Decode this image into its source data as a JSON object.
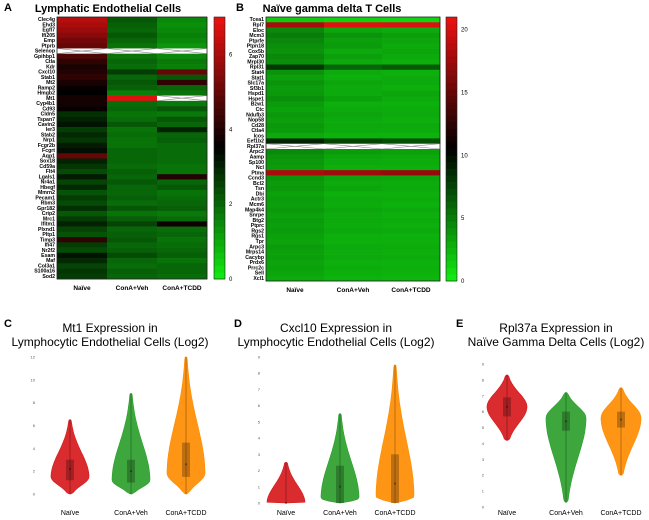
{
  "panels": {
    "A": {
      "letter": "A",
      "title": "Lymphatic Endothelial Cells"
    },
    "B": {
      "letter": "B",
      "title": "Naïve gamma delta T Cells"
    },
    "C": {
      "letter": "C",
      "title_line1": "Mt1 Expression in",
      "title_line2": "Lymphocytic Endothelial Cells (Log2)"
    },
    "D": {
      "letter": "D",
      "title_line1": "Cxcl10 Expression in",
      "title_line2": "Lymphocytic Endothelial Cells (Log2)"
    },
    "E": {
      "letter": "E",
      "title_line1": "Rpl37a Expression in",
      "title_line2": "Naïve Gamma Delta Cells (Log2)"
    }
  },
  "colors": {
    "low": "#11ee11",
    "mid": "#000000",
    "high": "#ee1111",
    "naive": "#d7191c",
    "veh": "#2ca02c",
    "tcdd": "#ff8c00"
  },
  "chart_data": [
    {
      "type": "heatmap",
      "title": "Lymphatic Endothelial Cells",
      "columns": [
        "Naïve",
        "ConA+Veh",
        "ConA+TCDD"
      ],
      "rows": [
        "Clec4g",
        "Ehd3",
        "Egfl7",
        "Ifi205",
        "Emp",
        "Ptprb",
        "Selenop",
        "Gpihbp1",
        "Ctla",
        "Kdr",
        "Cxcl10",
        "Stab1",
        "Mt2",
        "Ramp2",
        "Hmgb2",
        "Mt1",
        "Cyp4b1",
        "Cd93",
        "Cldn5",
        "Tspan7",
        "Cavin2",
        "Ier3",
        "Stab2",
        "Nrp1",
        "Fcgr2b",
        "Fcgrt",
        "Aqp1",
        "Sox18",
        "Cd59a",
        "Flt4",
        "Lgals1",
        "Nr4a1",
        "Hbegf",
        "Mmrn2",
        "Pecam1",
        "Rbm3",
        "Gpr182",
        "Crip2",
        "Mrc1",
        "Ifitm1",
        "Plxnd1",
        "Pltp1",
        "Timp3",
        "Ifi47",
        "Nr2f2",
        "Esam",
        "Maf",
        "Col3a1",
        "S100a16",
        "Sod2"
      ],
      "values": [
        [
          6.2,
          2.2,
          1.5
        ],
        [
          6.0,
          2.1,
          1.4
        ],
        [
          5.8,
          2.0,
          1.5
        ],
        [
          5.5,
          2.2,
          1.6
        ],
        [
          5.2,
          2.0,
          1.5
        ],
        [
          5.0,
          1.8,
          1.3
        ],
        [
          null,
          null,
          null
        ],
        [
          4.6,
          1.8,
          1.5
        ],
        [
          4.2,
          2.0,
          1.7
        ],
        [
          3.9,
          1.9,
          1.6
        ],
        [
          4.0,
          2.6,
          5.0
        ],
        [
          4.2,
          2.0,
          2.2
        ],
        [
          3.9,
          2.2,
          4.2
        ],
        [
          3.6,
          2.1,
          2.0
        ],
        [
          3.5,
          1.6,
          1.8
        ],
        [
          3.8,
          6.8,
          null
        ],
        [
          3.8,
          1.9,
          1.7
        ],
        [
          3.6,
          2.0,
          2.2
        ],
        [
          2.8,
          1.8,
          1.7
        ],
        [
          3.0,
          1.9,
          2.2
        ],
        [
          3.2,
          2.2,
          2.0
        ],
        [
          2.6,
          1.8,
          3.0
        ],
        [
          2.9,
          1.9,
          2.0
        ],
        [
          2.7,
          1.8,
          2.1
        ],
        [
          3.1,
          1.8,
          1.9
        ],
        [
          3.3,
          2.0,
          1.9
        ],
        [
          5.0,
          2.0,
          1.9
        ],
        [
          3.0,
          2.0,
          1.9
        ],
        [
          2.7,
          1.9,
          1.8
        ],
        [
          2.4,
          2.1,
          1.8
        ],
        [
          3.1,
          2.0,
          4.0
        ],
        [
          2.5,
          2.2,
          2.0
        ],
        [
          2.9,
          2.0,
          2.2
        ],
        [
          2.3,
          2.0,
          1.8
        ],
        [
          2.6,
          2.1,
          1.9
        ],
        [
          2.4,
          1.9,
          2.0
        ],
        [
          2.8,
          2.2,
          2.1
        ],
        [
          2.2,
          1.8,
          1.7
        ],
        [
          2.6,
          2.1,
          1.9
        ],
        [
          3.0,
          2.5,
          3.7
        ],
        [
          2.5,
          2.0,
          1.9
        ],
        [
          2.3,
          2.1,
          2.0
        ],
        [
          4.2,
          2.2,
          1.8
        ],
        [
          2.6,
          2.0,
          1.9
        ],
        [
          2.4,
          2.1,
          2.0
        ],
        [
          3.2,
          2.4,
          2.1
        ],
        [
          2.9,
          2.0,
          1.8
        ],
        [
          2.5,
          1.9,
          2.0
        ],
        [
          2.7,
          2.1,
          2.0
        ],
        [
          2.6,
          2.0,
          1.9
        ]
      ],
      "scale": {
        "min": 0,
        "max": 7,
        "ticks": [
          0,
          2,
          4,
          6
        ]
      }
    },
    {
      "type": "heatmap",
      "title": "Naïve gamma delta T Cells",
      "columns": [
        "Naïve",
        "ConA+Veh",
        "ConA+TCDD"
      ],
      "rows": [
        "Tcea1",
        "Rpl7",
        "Eloc",
        "Mcm3",
        "Ptprfe",
        "Ptpn18",
        "Cox5b",
        "Zap70",
        "Mrpl30",
        "Rpl31",
        "Stat4",
        "Stat1",
        "Slc17a",
        "Sf3b1",
        "Hspd1",
        "Hspe1",
        "Bzw1",
        "Ctc",
        "Ndufb3",
        "Nop58",
        "Cd28",
        "Ctla4",
        "Icos",
        "Eef1b2",
        "Rpl37a",
        "Arpc2",
        "Aamp",
        "Sp100",
        "Ncl",
        "Ptma",
        "Ccnd3",
        "Bcl2",
        "Tsn",
        "Dbi",
        "Actr3",
        "Mcm6",
        "Map4k4",
        "Snrpe",
        "Btg2",
        "Ptprc",
        "Rgs2",
        "Rgs1",
        "Tpr",
        "Arpc3",
        "Mrps14",
        "Cacybp",
        "Prdx6",
        "Prrc2c",
        "Sell",
        "Xcl1"
      ],
      "values": [
        [
          1.5,
          1.2,
          1.0
        ],
        [
          18.0,
          20.5,
          20.2
        ],
        [
          4.5,
          3.2,
          3.0
        ],
        [
          5.0,
          4.0,
          3.5
        ],
        [
          4.6,
          3.5,
          3.2
        ],
        [
          4.2,
          3.6,
          3.0
        ],
        [
          4.0,
          3.0,
          3.2
        ],
        [
          4.5,
          3.5,
          3.0
        ],
        [
          4.2,
          3.0,
          2.8
        ],
        [
          8.0,
          6.0,
          6.5
        ],
        [
          4.0,
          3.0,
          2.8
        ],
        [
          3.5,
          2.8,
          3.0
        ],
        [
          4.0,
          3.2,
          3.0
        ],
        [
          3.6,
          3.0,
          2.8
        ],
        [
          3.8,
          3.0,
          3.2
        ],
        [
          4.2,
          3.4,
          3.0
        ],
        [
          3.6,
          2.8,
          2.7
        ],
        [
          3.4,
          3.0,
          2.9
        ],
        [
          3.8,
          3.2,
          3.0
        ],
        [
          3.5,
          3.0,
          2.8
        ],
        [
          3.8,
          3.1,
          3.0
        ],
        [
          3.6,
          3.0,
          2.9
        ],
        [
          3.0,
          2.6,
          2.6
        ],
        [
          9.0,
          7.5,
          7.0
        ],
        [
          null,
          null,
          null
        ],
        [
          4.4,
          3.6,
          3.4
        ],
        [
          4.0,
          3.2,
          3.1
        ],
        [
          3.8,
          3.0,
          2.9
        ],
        [
          3.6,
          2.8,
          2.8
        ],
        [
          18.0,
          17.5,
          17.0
        ],
        [
          4.0,
          3.3,
          3.2
        ],
        [
          3.6,
          3.0,
          2.9
        ],
        [
          3.8,
          3.2,
          3.0
        ],
        [
          3.4,
          2.8,
          2.8
        ],
        [
          3.6,
          3.0,
          2.9
        ],
        [
          3.5,
          2.9,
          2.7
        ],
        [
          3.8,
          3.2,
          3.0
        ],
        [
          3.4,
          3.0,
          2.8
        ],
        [
          3.6,
          3.0,
          2.9
        ],
        [
          3.5,
          2.9,
          2.8
        ],
        [
          3.6,
          3.1,
          3.0
        ],
        [
          3.4,
          2.8,
          2.7
        ],
        [
          3.3,
          2.8,
          2.8
        ],
        [
          3.6,
          3.0,
          2.9
        ],
        [
          3.4,
          2.9,
          2.8
        ],
        [
          3.5,
          3.0,
          2.9
        ],
        [
          3.3,
          2.8,
          2.7
        ],
        [
          3.4,
          2.9,
          2.8
        ],
        [
          3.2,
          2.8,
          2.6
        ],
        [
          3.0,
          2.6,
          2.5
        ]
      ],
      "scale": {
        "min": 0,
        "max": 21,
        "ticks": [
          0,
          5,
          10,
          15,
          20
        ]
      }
    },
    {
      "type": "violin",
      "title": "Mt1 Expression in Lymphocytic Endothelial Cells (Log2)",
      "categories": [
        "Naïve",
        "ConA+Veh",
        "ConA+TCDD"
      ],
      "ylim": [
        0,
        12
      ],
      "yticks": [
        0,
        2,
        4,
        6,
        8,
        10,
        12
      ],
      "series": [
        {
          "name": "Naïve",
          "min": 0.0,
          "max": 6.5,
          "q1": 1.2,
          "median": 2.2,
          "q3": 3.0,
          "mode": 1.5
        },
        {
          "name": "ConA+Veh",
          "min": 0.0,
          "max": 8.8,
          "q1": 1.0,
          "median": 2.0,
          "q3": 3.0,
          "mode": 1.2
        },
        {
          "name": "ConA+TCDD",
          "min": 0.0,
          "max": 12.0,
          "q1": 1.5,
          "median": 2.6,
          "q3": 4.5,
          "mode": 1.8
        }
      ]
    },
    {
      "type": "violin",
      "title": "Cxcl10 Expression in Lymphocytic Endothelial Cells (Log2)",
      "categories": [
        "Naïve",
        "ConA+Veh",
        "ConA+TCDD"
      ],
      "ylim": [
        0,
        9
      ],
      "yticks": [
        0,
        1,
        2,
        3,
        4,
        5,
        6,
        7,
        8,
        9
      ],
      "series": [
        {
          "name": "Naïve",
          "min": 0.0,
          "max": 2.5,
          "q1": 0.0,
          "median": 0.0,
          "q3": 0.0,
          "mode": 0.0
        },
        {
          "name": "ConA+Veh",
          "min": 0.0,
          "max": 5.5,
          "q1": 0.0,
          "median": 1.0,
          "q3": 2.3,
          "mode": 0.3
        },
        {
          "name": "ConA+TCDD",
          "min": 0.0,
          "max": 8.5,
          "q1": 0.0,
          "median": 1.2,
          "q3": 3.0,
          "mode": 0.4
        }
      ]
    },
    {
      "type": "violin",
      "title": "Rpl37a Expression in Naïve Gamma Delta Cells (Log2)",
      "categories": [
        "Naïve",
        "ConA+Veh",
        "ConA+TCDD"
      ],
      "ylim": [
        0,
        9
      ],
      "yticks": [
        0,
        1,
        2,
        3,
        4,
        5,
        6,
        7,
        8,
        9
      ],
      "series": [
        {
          "name": "Naïve",
          "min": 4.2,
          "max": 8.3,
          "q1": 5.7,
          "median": 6.3,
          "q3": 6.9,
          "mode": 6.3
        },
        {
          "name": "ConA+Veh",
          "min": 0.3,
          "max": 7.2,
          "q1": 4.8,
          "median": 5.4,
          "q3": 6.0,
          "mode": 5.6
        },
        {
          "name": "ConA+TCDD",
          "min": 2.0,
          "max": 7.5,
          "q1": 5.0,
          "median": 5.5,
          "q3": 6.0,
          "mode": 5.6
        }
      ]
    }
  ]
}
